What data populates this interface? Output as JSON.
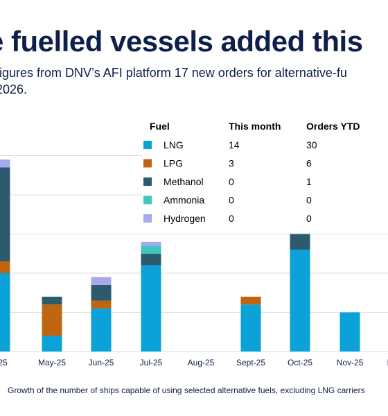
{
  "header": {
    "title": "e fuelled vessels added this",
    "subtitle_line1": "figures from DNV’s AFI platform 17 new orders for alternative-fu",
    "subtitle_line2": "2026."
  },
  "legend_table": {
    "headers": [
      "Fuel",
      "This month",
      "Orders YTD"
    ],
    "rows": [
      {
        "fuel": "LNG",
        "this_month": "14",
        "ytd": "30",
        "color": "#0aa2d8"
      },
      {
        "fuel": "LPG",
        "this_month": "3",
        "ytd": "6",
        "color": "#c0650f"
      },
      {
        "fuel": "Methanol",
        "this_month": "0",
        "ytd": "1",
        "color": "#2d5b6e"
      },
      {
        "fuel": "Ammonia",
        "this_month": "0",
        "ytd": "0",
        "color": "#3ec7bf"
      },
      {
        "fuel": "Hydrogen",
        "this_month": "0",
        "ytd": "0",
        "color": "#a8a8ee"
      }
    ]
  },
  "caption": "Growth of the number of ships capable of using selected alternative fuels, excluding LNG carriers",
  "chart_data": {
    "type": "bar",
    "stacked": true,
    "categories": [
      "r-25",
      "May-25",
      "Jun-25",
      "Jul-25",
      "Aug-25",
      "Sept-25",
      "Oct-25",
      "Nov-25",
      "D"
    ],
    "series": [
      {
        "name": "LNG",
        "color": "#0aa2d8",
        "values": [
          20,
          4,
          11,
          22,
          0,
          12,
          26,
          10,
          0
        ]
      },
      {
        "name": "LPG",
        "color": "#c0650f",
        "values": [
          3,
          8,
          2,
          0,
          0,
          2,
          0,
          0,
          0
        ]
      },
      {
        "name": "Methanol",
        "color": "#2d5b6e",
        "values": [
          24,
          2,
          4,
          3,
          0,
          0,
          4,
          0,
          0
        ]
      },
      {
        "name": "Ammonia",
        "color": "#3ec7bf",
        "values": [
          0,
          0,
          0,
          2,
          0,
          0,
          0,
          0,
          0
        ]
      },
      {
        "name": "Hydrogen",
        "color": "#a8a8ee",
        "values": [
          2,
          0,
          2,
          1,
          0,
          0,
          0,
          0,
          0
        ]
      }
    ],
    "ylim": [
      0,
      50
    ],
    "grid": true
  }
}
